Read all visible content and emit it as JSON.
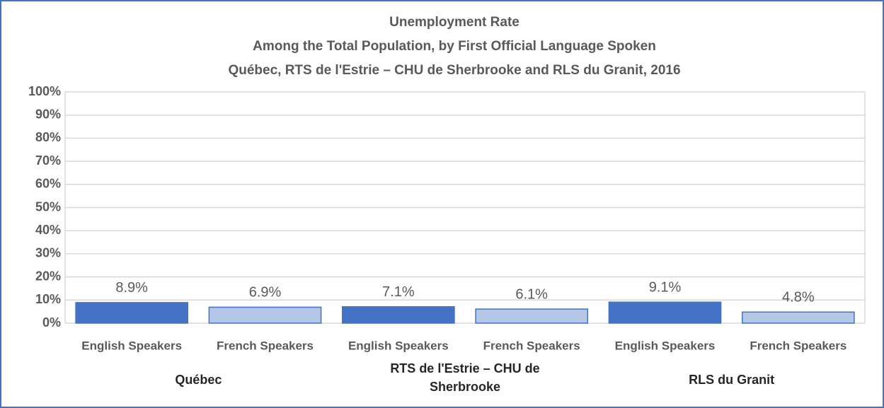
{
  "chart_data": {
    "type": "bar",
    "title": "Unemployment Rate",
    "subtitle": [
      "Among the Total Population, by First Official Language Spoken",
      "Québec, RTS de l'Estrie – CHU de Sherbrooke and RLS du Granit, 2016"
    ],
    "categories": [
      "English Speakers",
      "French Speakers",
      "English Speakers",
      "French Speakers",
      "English Speakers",
      "French Speakers"
    ],
    "groups": [
      "Québec",
      "RTS de l'Estrie – CHU de Sherbrooke",
      "RLS du Granit"
    ],
    "values": [
      8.9,
      6.9,
      7.1,
      6.1,
      9.1,
      4.8
    ],
    "value_labels": [
      "8.9%",
      "6.9%",
      "7.1%",
      "6.1%",
      "9.1%",
      "4.8%"
    ],
    "colors": [
      "#4472c4",
      "#b4c7e7",
      "#4472c4",
      "#b4c7e7",
      "#4472c4",
      "#b4c7e7"
    ],
    "ylim": [
      0,
      100
    ],
    "yticks": [
      {
        "value": 0,
        "label": "0%"
      },
      {
        "value": 10,
        "label": "10%"
      },
      {
        "value": 20,
        "label": "20%"
      },
      {
        "value": 30,
        "label": "30%"
      },
      {
        "value": 40,
        "label": "40%"
      },
      {
        "value": 50,
        "label": "50%"
      },
      {
        "value": 60,
        "label": "60%"
      },
      {
        "value": 70,
        "label": "70%"
      },
      {
        "value": 80,
        "label": "80%"
      },
      {
        "value": 90,
        "label": "90%"
      },
      {
        "value": 100,
        "label": "100%"
      }
    ],
    "grid": true
  }
}
